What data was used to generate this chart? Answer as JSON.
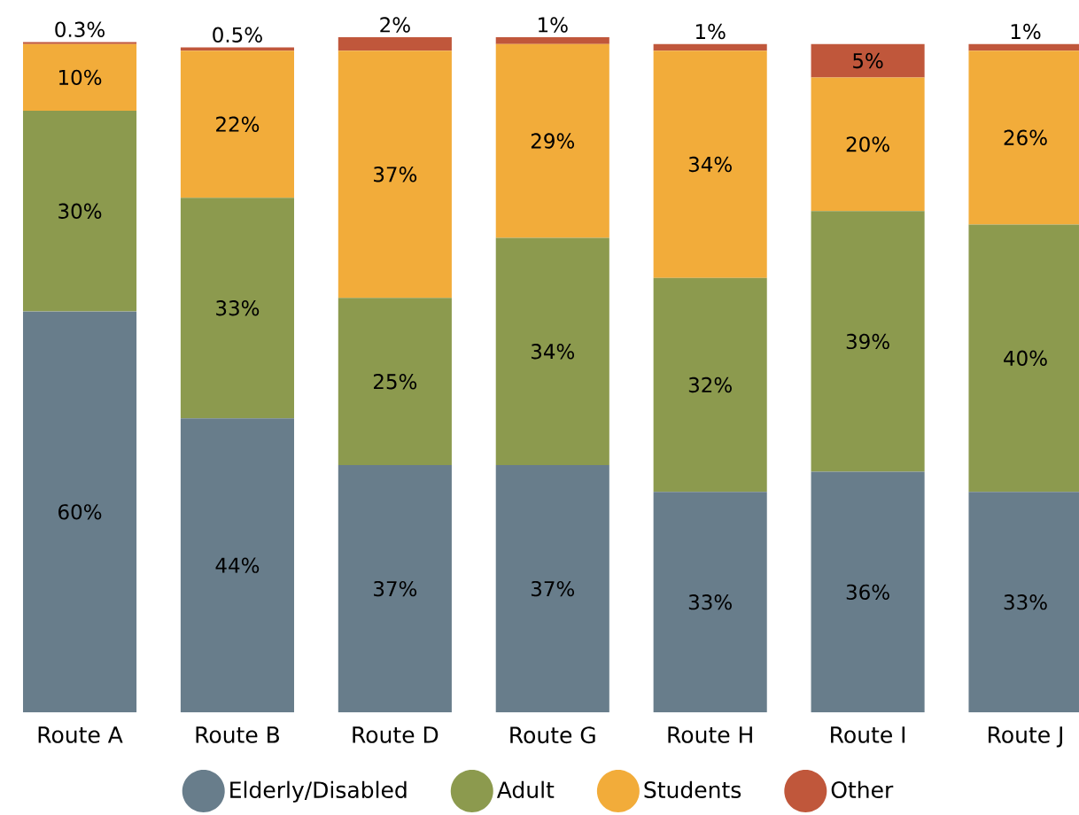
{
  "chart_data": {
    "type": "bar",
    "stacked": true,
    "categories": [
      "Route A",
      "Route B",
      "Route D",
      "Route G",
      "Route H",
      "Route I",
      "Route J"
    ],
    "series": [
      {
        "name": "Elderly/Disabled",
        "color": "#687d8b",
        "values": [
          60,
          44,
          37,
          37,
          33,
          36,
          33
        ],
        "value_labels": [
          "60%",
          "44%",
          "37%",
          "37%",
          "33%",
          "36%",
          "33%"
        ]
      },
      {
        "name": "Adult",
        "color": "#8c9a4e",
        "values": [
          30,
          33,
          25,
          34,
          32,
          39,
          40
        ],
        "value_labels": [
          "30%",
          "33%",
          "25%",
          "34%",
          "32%",
          "39%",
          "40%"
        ]
      },
      {
        "name": "Students",
        "color": "#f2ac3a",
        "values": [
          10,
          22,
          37,
          29,
          34,
          20,
          26
        ],
        "value_labels": [
          "10%",
          "22%",
          "37%",
          "29%",
          "34%",
          "20%",
          "26%"
        ]
      },
      {
        "name": "Other",
        "color": "#c0573b",
        "values": [
          0.3,
          0.5,
          2,
          1,
          1,
          5,
          1
        ],
        "value_labels": [
          "0.3%",
          "0.5%",
          "2%",
          "1%",
          "1%",
          "5%",
          "1%"
        ]
      }
    ],
    "legend": "bottom",
    "tick_labels": "x"
  }
}
